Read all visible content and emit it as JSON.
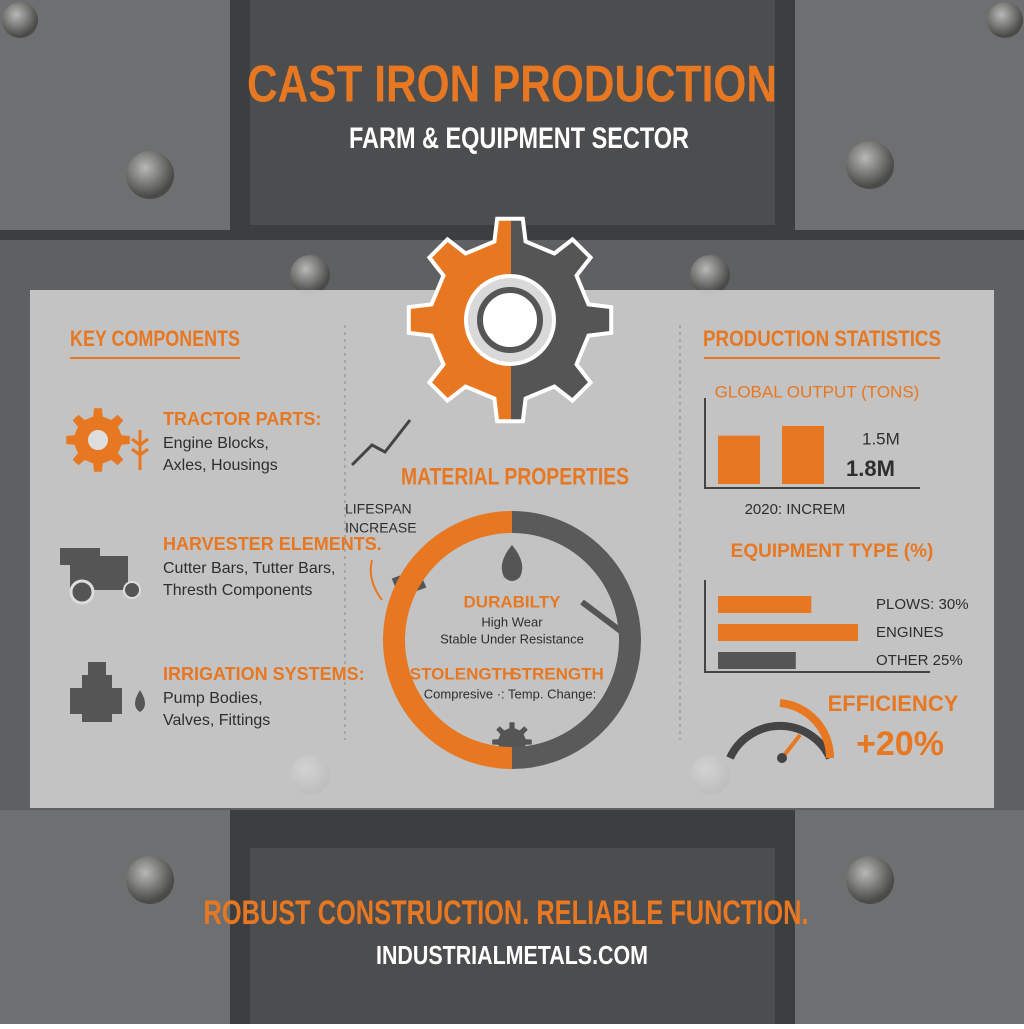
{
  "header": {
    "title": "CAST IRON PRODUCTION",
    "subtitle": "FARM & EQUIPMENT SECTOR"
  },
  "key_components": {
    "title": "KEY COMPONENTS",
    "items": [
      {
        "title": "TRACTOR PARTS:",
        "lines": [
          "Engine Blocks,",
          "Axles, Housings"
        ]
      },
      {
        "title": "HARVESTER ELEMENTS.",
        "lines": [
          "Cutter Bars, Tutter Bars,",
          "Thresth Components"
        ]
      },
      {
        "title": "IRRIGATION SYSTEMS:",
        "lines": [
          "Pump Bodies,",
          "Valves, Fittings"
        ]
      }
    ]
  },
  "material_properties": {
    "title": "MATERIAL PROPERTIES",
    "note": [
      "LIFESPAN",
      "INCREASE"
    ],
    "durability": {
      "title": "DURABILTY",
      "lines": [
        "High Wear",
        "Stable Under Resistance"
      ]
    },
    "strength_left": "STOLENGTH",
    "strength_right": "STRENGTH",
    "strength_line": "Compresive ·: Temp. Change:"
  },
  "production_statistics": {
    "title": "PRODUCTION STATISTICS",
    "global_output": {
      "title": "GLOBAL OUTPUT (TONS)",
      "values": [
        1500000,
        1800000
      ],
      "value_labels": [
        "1.5M",
        "1.8M"
      ],
      "colors": [
        "#e87722",
        "#e87722"
      ],
      "caption": "2020: INCREM"
    },
    "equipment_type": {
      "title": "EQUIPMENT TYPE (%)",
      "values": [
        30,
        45,
        25
      ],
      "value_labels": [
        "PLOWS: 30%",
        "ENGINES",
        "OTHER 25%"
      ],
      "colors": [
        "#e87722",
        "#e87722",
        "#555555"
      ]
    },
    "efficiency": {
      "title": "EFFICIENCY",
      "value_label": "+20%"
    }
  },
  "footer": {
    "tagline": "ROBUST CONSTRUCTION. RELIABLE FUNCTION.",
    "website": "INDUSTRIALMETALS.COM"
  }
}
